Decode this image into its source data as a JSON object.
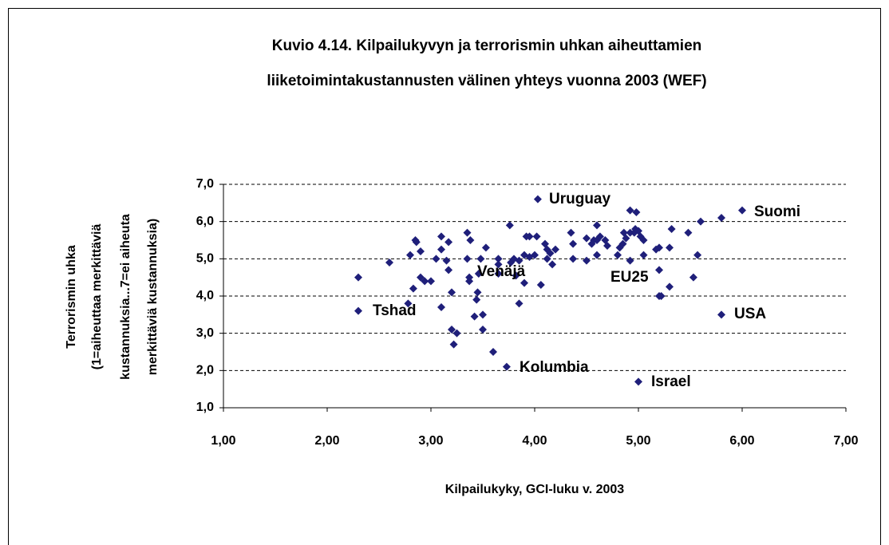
{
  "chart_data": {
    "type": "scatter",
    "title": [
      "Kuvio 4.14.  Kilpailukyvyn ja terrorismin uhkan aiheuttamien",
      "liiketoimintakustannusten välinen yhteys vuonna  2003 (WEF)"
    ],
    "x_label": "Kilpailukyky, GCI-luku v. 2003",
    "y_label": [
      "Terrorismin uhka",
      "(1=aiheuttaa merkittäviä",
      "kustannuksia...7=ei aiheuta",
      "merkittäviä kustannuksia)"
    ],
    "annotations": [
      "Uruguay",
      "Suomi",
      "Venäjä",
      "EU25",
      "Tshad",
      "USA",
      "Kolumbia",
      "Israel"
    ],
    "color": "#1f1f7a",
    "grid": true,
    "xlim": [
      1,
      7
    ],
    "ylim": [
      1,
      7
    ],
    "xticks": [
      {
        "value": 1,
        "label": "1,00"
      },
      {
        "value": 2,
        "label": "2,00"
      },
      {
        "value": 3,
        "label": "3,00"
      },
      {
        "value": 4,
        "label": "4,00"
      },
      {
        "value": 5,
        "label": "5,00"
      },
      {
        "value": 6,
        "label": "6,00"
      },
      {
        "value": 7,
        "label": "7,00"
      }
    ],
    "yticks": [
      {
        "value": 1,
        "label": "1,0"
      },
      {
        "value": 2,
        "label": "2,0"
      },
      {
        "value": 3,
        "label": "3,0"
      },
      {
        "value": 4,
        "label": "4,0"
      },
      {
        "value": 5,
        "label": "5,0"
      },
      {
        "value": 6,
        "label": "6,0"
      },
      {
        "value": 7,
        "label": "7,0"
      }
    ],
    "x": [
      2.3,
      2.3,
      2.6,
      2.8,
      2.78,
      2.83,
      2.85,
      2.86,
      2.9,
      2.9,
      2.94,
      3.0,
      3.05,
      3.1,
      3.1,
      3.1,
      3.15,
      3.17,
      3.17,
      3.2,
      3.2,
      3.22,
      3.25,
      3.35,
      3.35,
      3.37,
      3.37,
      3.38,
      3.42,
      3.44,
      3.45,
      3.46,
      3.48,
      3.53,
      3.5,
      3.5,
      3.6,
      3.65,
      3.65,
      3.65,
      3.73,
      3.76,
      3.77,
      3.8,
      3.82,
      3.85,
      3.85,
      3.9,
      3.9,
      3.92,
      3.95,
      3.95,
      4.0,
      4.02,
      4.03,
      4.06,
      4.1,
      4.12,
      4.12,
      4.15,
      4.17,
      4.2,
      4.35,
      4.37,
      4.37,
      4.5,
      4.5,
      4.55,
      4.57,
      4.6,
      4.6,
      4.6,
      4.63,
      4.68,
      4.7,
      4.8,
      4.82,
      4.85,
      4.86,
      4.88,
      4.92,
      4.96,
      4.97,
      5.0,
      5.02,
      5.05,
      5.05,
      4.92,
      4.98,
      4.92,
      5.0,
      5.17,
      5.2,
      5.2,
      5.2,
      5.22,
      5.3,
      5.32,
      5.3,
      5.48,
      5.53,
      5.57,
      5.6,
      5.8,
      5.8,
      6.0
    ],
    "values": [
      4.5,
      3.6,
      4.9,
      5.1,
      3.8,
      4.2,
      5.5,
      5.45,
      5.2,
      4.5,
      4.4,
      4.4,
      5.0,
      5.6,
      5.25,
      3.7,
      4.95,
      5.45,
      4.7,
      4.1,
      3.1,
      2.7,
      3.0,
      5.7,
      5.0,
      4.5,
      4.4,
      5.5,
      3.45,
      3.9,
      4.1,
      4.6,
      5.0,
      5.3,
      3.5,
      3.1,
      2.5,
      5.0,
      4.85,
      4.6,
      2.1,
      5.9,
      4.9,
      5.0,
      4.55,
      3.8,
      4.95,
      5.1,
      4.35,
      5.6,
      5.05,
      5.6,
      5.1,
      5.6,
      6.6,
      4.3,
      5.4,
      5.25,
      5.0,
      5.15,
      4.85,
      5.25,
      5.7,
      5.4,
      5.0,
      5.55,
      4.95,
      5.4,
      5.5,
      5.5,
      5.9,
      5.1,
      5.6,
      5.5,
      5.35,
      5.1,
      5.3,
      5.4,
      5.7,
      5.55,
      5.7,
      5.7,
      5.8,
      5.75,
      5.6,
      5.5,
      5.1,
      4.95,
      6.25,
      6.3,
      1.7,
      5.25,
      5.3,
      4.7,
      4.0,
      4.0,
      5.3,
      5.8,
      4.25,
      5.7,
      4.5,
      5.1,
      6.0,
      6.1,
      3.5,
      6.3
    ]
  }
}
